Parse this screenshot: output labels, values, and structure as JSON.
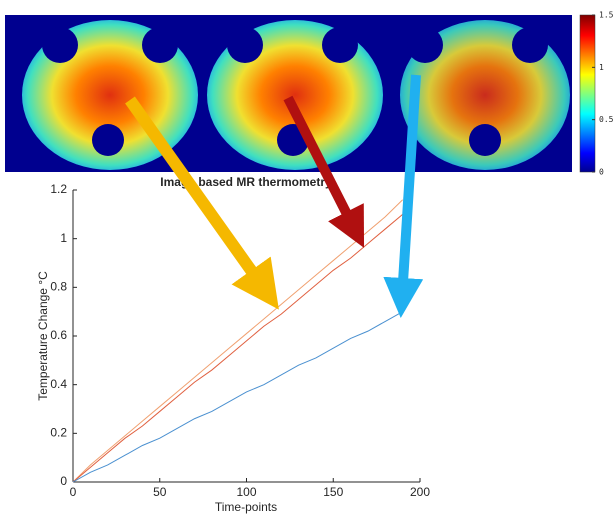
{
  "chart_data": [
    {
      "type": "colorbar",
      "ylim": [
        0,
        1.5
      ],
      "yticks": [
        0,
        0.5,
        1,
        1.5
      ]
    },
    {
      "type": "line",
      "title": "Image based MR thermometry",
      "x_label": "Time-points",
      "y_label": "Temperature Change °C",
      "x": [
        0,
        10,
        20,
        30,
        40,
        50,
        60,
        70,
        80,
        90,
        100,
        110,
        120,
        130,
        140,
        150,
        160,
        170,
        180,
        190
      ],
      "series": [
        {
          "color": "#f0a070",
          "values": [
            0,
            0.07,
            0.13,
            0.19,
            0.25,
            0.31,
            0.37,
            0.43,
            0.49,
            0.55,
            0.61,
            0.67,
            0.73,
            0.79,
            0.85,
            0.91,
            0.97,
            1.03,
            1.09,
            1.16
          ]
        },
        {
          "color": "#e06040",
          "values": [
            0,
            0.06,
            0.12,
            0.18,
            0.23,
            0.29,
            0.35,
            0.41,
            0.46,
            0.52,
            0.58,
            0.64,
            0.69,
            0.75,
            0.81,
            0.87,
            0.92,
            0.98,
            1.04,
            1.1
          ]
        },
        {
          "color": "#4a90d0",
          "values": [
            0,
            0.04,
            0.07,
            0.11,
            0.15,
            0.18,
            0.22,
            0.26,
            0.29,
            0.33,
            0.37,
            0.4,
            0.44,
            0.48,
            0.51,
            0.55,
            0.59,
            0.62,
            0.66,
            0.7
          ]
        }
      ],
      "xlim": [
        0,
        200
      ],
      "xticks": [
        0,
        50,
        100,
        150,
        200
      ],
      "ylim": [
        0,
        1.2
      ],
      "yticks": [
        0,
        0.2,
        0.4,
        0.6,
        0.8,
        1,
        1.2
      ]
    }
  ]
}
